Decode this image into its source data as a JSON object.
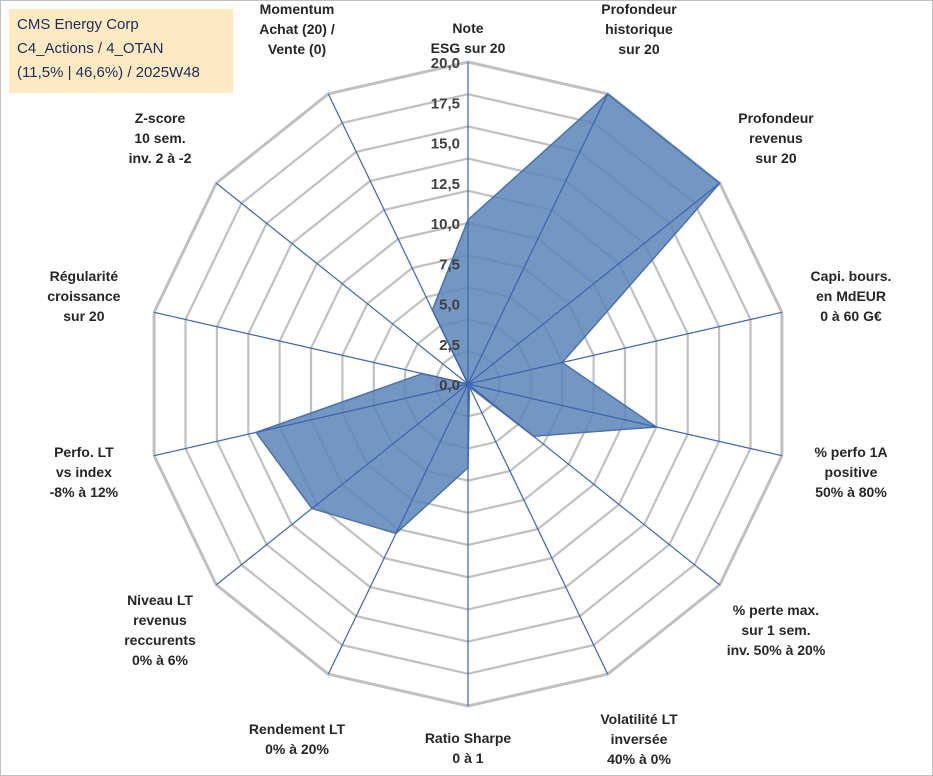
{
  "info": {
    "line1": "CMS Energy Corp",
    "line2": "C4_Actions / 4_OTAN",
    "line3": "(11,5% | 46,6%) / 2025W48"
  },
  "chart_data": {
    "type": "radar",
    "title": "",
    "range": [
      0,
      20
    ],
    "ticks": [
      "0,0",
      "2,5",
      "5,0",
      "7,5",
      "10,0",
      "12,5",
      "15,0",
      "17,5",
      "20,0"
    ],
    "grid": true,
    "axes": [
      {
        "lines": [
          "Note",
          "ESG sur 20"
        ]
      },
      {
        "lines": [
          "Profondeur",
          "historique",
          "sur 20"
        ]
      },
      {
        "lines": [
          "Profondeur",
          "revenus",
          "sur 20"
        ]
      },
      {
        "lines": [
          "Capi. bours.",
          "en MdEUR",
          "0 à 60 G€"
        ]
      },
      {
        "lines": [
          "% perfo 1A",
          "positive",
          "50% à 80%"
        ]
      },
      {
        "lines": [
          "% perte max.",
          "sur 1 sem.",
          "inv. 50% à 20%"
        ]
      },
      {
        "lines": [
          "Volatilité LT",
          "inversée",
          "40% à 0%"
        ]
      },
      {
        "lines": [
          "Ratio Sharpe",
          "0 à 1"
        ]
      },
      {
        "lines": [
          "Rendement LT",
          "0% à 20%"
        ]
      },
      {
        "lines": [
          "Niveau LT",
          "revenus",
          "reccurents",
          "0% à 6%"
        ]
      },
      {
        "lines": [
          "Perfo. LT",
          "vs index",
          "-8% à 12%"
        ]
      },
      {
        "lines": [
          "Régularité",
          "croissance",
          "sur 20"
        ]
      },
      {
        "lines": [
          "Z-score",
          "10 sem.",
          "inv. 2 à -2"
        ]
      },
      {
        "lines": [
          "Momentum",
          "Achat (20) /",
          "Vente (0)"
        ]
      }
    ],
    "series": [
      {
        "values": [
          10.2,
          20.0,
          20.0,
          6.0,
          12.0,
          5.2,
          0.2,
          5.2,
          10.3,
          12.4,
          13.5,
          2.9,
          0.0,
          5.1
        ]
      }
    ],
    "colors": {
      "fill": "#5b84b8",
      "stroke": "#4a72ab",
      "spokes": "#3c63b0",
      "grid": "#c0c0c0"
    }
  }
}
